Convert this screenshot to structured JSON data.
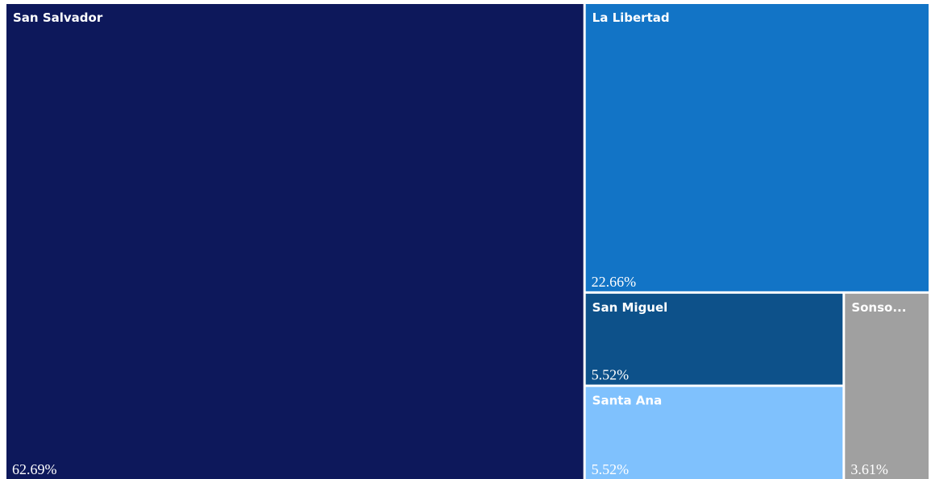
{
  "chart_data": {
    "type": "treemap",
    "categories": [
      "San Salvador",
      "La Libertad",
      "San Miguel",
      "Santa Ana",
      "Sonso..."
    ],
    "values": [
      62.69,
      22.66,
      5.52,
      5.52,
      3.61
    ],
    "value_labels": [
      "62.69%",
      "22.66%",
      "5.52%",
      "5.52%",
      "3.61%"
    ],
    "colors": [
      "#0d185b",
      "#1274c6",
      "#0d518a",
      "#7fc1fd",
      "#a0a0a0"
    ]
  }
}
